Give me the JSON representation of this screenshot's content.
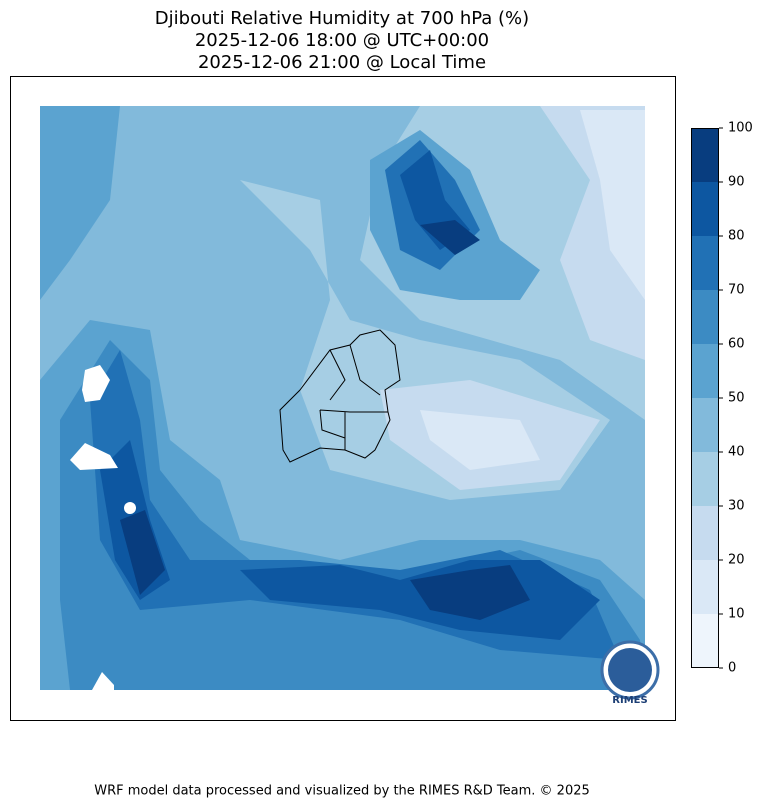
{
  "title": [
    "Djibouti Relative Humidity at 700 hPa (%)",
    "2025-12-06 18:00 @ UTC+00:00",
    "2025-12-06 21:00 @ Local Time"
  ],
  "colorbar": {
    "ticks": [
      0,
      10,
      20,
      30,
      40,
      50,
      60,
      70,
      80,
      90,
      100
    ],
    "colors": [
      "#eef5fc",
      "#dae8f6",
      "#c6dbef",
      "#a6cee4",
      "#82badb",
      "#5ba3d0",
      "#3c8bc3",
      "#2171b5",
      "#0d57a1",
      "#083d7f"
    ]
  },
  "logo_text": "RIMES",
  "footer": "WRF model data processed and visualized by the RIMES R&D Team. © 2025"
}
